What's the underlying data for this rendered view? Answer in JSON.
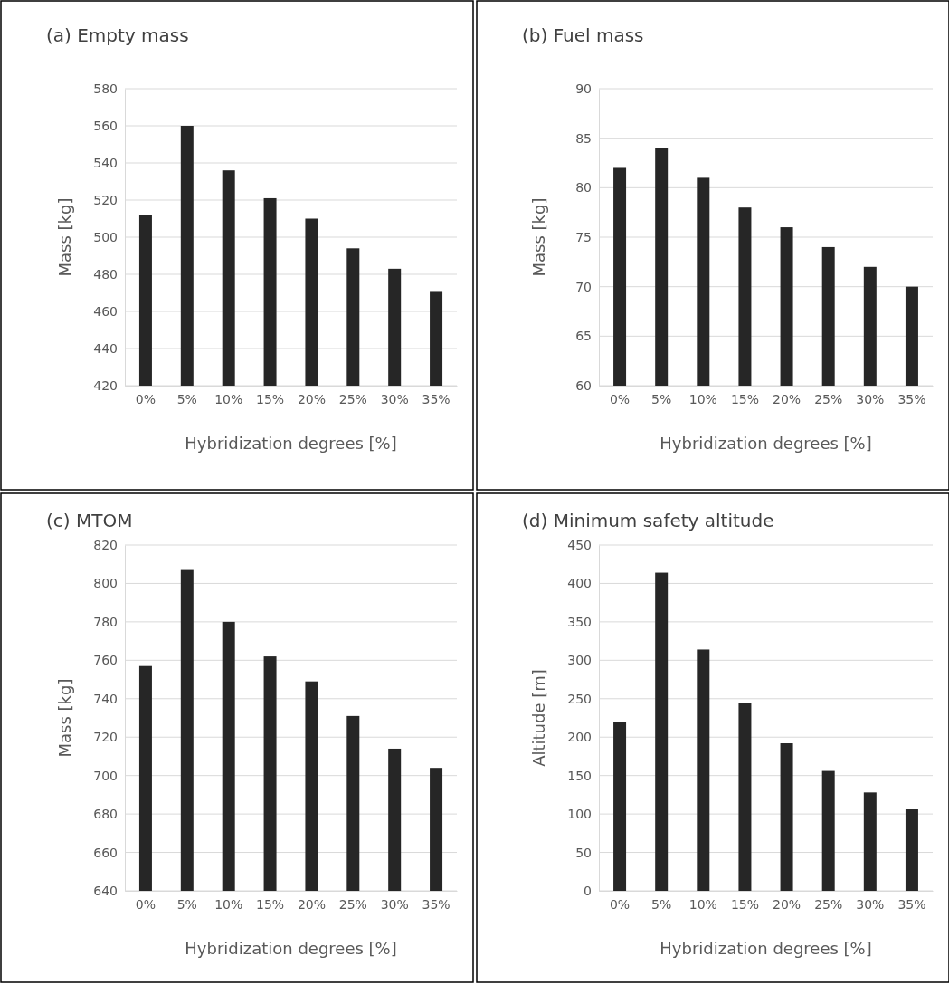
{
  "chart_data": [
    {
      "type": "bar",
      "title": "(a) Empty mass",
      "xlabel": "Hybridization degrees [%]",
      "ylabel": "Mass [kg]",
      "categories": [
        "0%",
        "5%",
        "10%",
        "15%",
        "20%",
        "25%",
        "30%",
        "35%"
      ],
      "values": [
        512,
        560,
        536,
        521,
        510,
        494,
        483,
        471
      ],
      "color": "#262626",
      "ylim": [
        420,
        580
      ],
      "yticks": [
        420,
        440,
        460,
        480,
        500,
        520,
        540,
        560,
        580
      ],
      "grid": "y"
    },
    {
      "type": "bar",
      "title": "(b) Fuel mass",
      "xlabel": "Hybridization degrees [%]",
      "ylabel": "Mass [kg]",
      "categories": [
        "0%",
        "5%",
        "10%",
        "15%",
        "20%",
        "25%",
        "30%",
        "35%"
      ],
      "values": [
        82,
        84,
        81,
        78,
        76,
        74,
        72,
        70
      ],
      "color": "#262626",
      "ylim": [
        60,
        90
      ],
      "yticks": [
        60,
        65,
        70,
        75,
        80,
        85,
        90
      ],
      "grid": "y"
    },
    {
      "type": "bar",
      "title": "(c) MTOM",
      "xlabel": "Hybridization degrees [%]",
      "ylabel": "Mass [kg]",
      "categories": [
        "0%",
        "5%",
        "10%",
        "15%",
        "20%",
        "25%",
        "30%",
        "35%"
      ],
      "values": [
        757,
        807,
        780,
        762,
        749,
        731,
        714,
        704
      ],
      "color": "#262626",
      "ylim": [
        640,
        820
      ],
      "yticks": [
        640,
        660,
        680,
        700,
        720,
        740,
        760,
        780,
        800,
        820
      ],
      "grid": "y"
    },
    {
      "type": "bar",
      "title": "(d) Minimum safety altitude",
      "xlabel": "Hybridization degrees [%]",
      "ylabel": "Altitude [m]",
      "categories": [
        "0%",
        "5%",
        "10%",
        "15%",
        "20%",
        "25%",
        "30%",
        "35%"
      ],
      "values": [
        220,
        414,
        314,
        244,
        192,
        156,
        128,
        106
      ],
      "color": "#262626",
      "ylim": [
        0,
        450
      ],
      "yticks": [
        0,
        50,
        100,
        150,
        200,
        250,
        300,
        350,
        400,
        450
      ],
      "grid": "y"
    }
  ]
}
